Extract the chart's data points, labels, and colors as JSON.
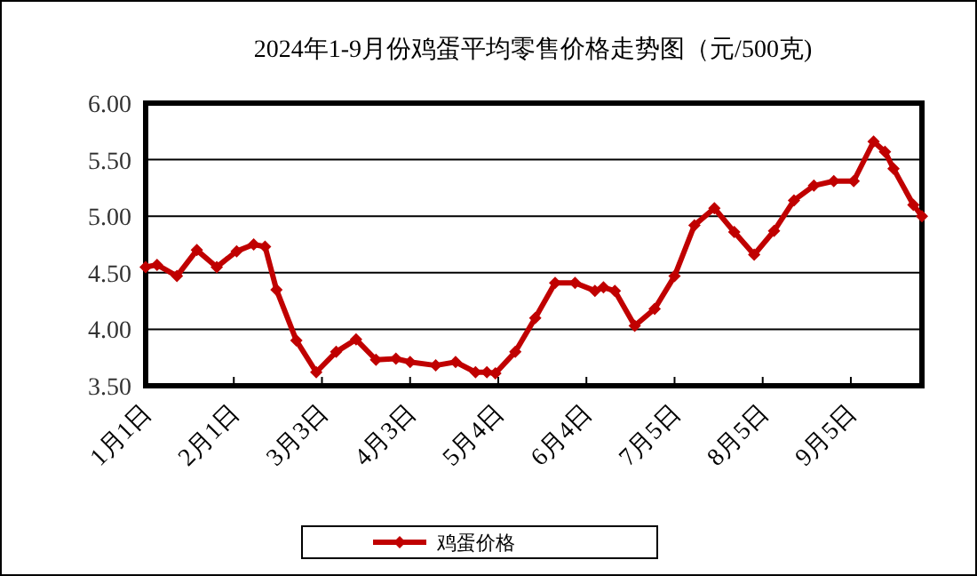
{
  "chart_data": {
    "type": "line",
    "title": "2024年1-9月份鸡蛋平均零售价格走势图（元/500克)",
    "x": [
      "--01-01",
      "--01-05",
      "--01-12",
      "--01-19",
      "--01-26",
      "--02-02",
      "--02-08",
      "--02-12",
      "--02-16",
      "--02-23",
      "--03-01",
      "--03-08",
      "--03-15",
      "--03-22",
      "--03-29",
      "--04-03",
      "--04-12",
      "--04-19",
      "--04-26",
      "--04-30",
      "--05-03",
      "--05-10",
      "--05-17",
      "--05-24",
      "--05-31",
      "--06-07",
      "--06-10",
      "--06-14",
      "--06-21",
      "--06-28",
      "--07-05",
      "--07-12",
      "--07-19",
      "--07-26",
      "--08-02",
      "--08-09",
      "--08-16",
      "--08-23",
      "--08-30",
      "--09-06",
      "--09-13",
      "--09-17",
      "--09-20",
      "--09-27",
      "--09-30"
    ],
    "series": [
      {
        "name": "鸡蛋价格",
        "color": "#c00000",
        "values": [
          4.55,
          4.57,
          4.47,
          4.7,
          4.55,
          4.69,
          4.75,
          4.73,
          4.35,
          3.9,
          3.62,
          3.8,
          3.91,
          3.73,
          3.74,
          3.71,
          3.68,
          3.71,
          3.62,
          3.62,
          3.61,
          3.8,
          4.1,
          4.41,
          4.41,
          4.34,
          4.37,
          4.34,
          4.03,
          4.18,
          4.47,
          4.92,
          5.07,
          4.86,
          4.66,
          4.87,
          5.14,
          5.27,
          5.31,
          5.31,
          5.66,
          5.57,
          5.42,
          5.1,
          5.0
        ]
      }
    ],
    "xlim": [
      "--01-01",
      "--09-30"
    ],
    "xticks": [
      {
        "value": "--01-01",
        "label": "1月1日"
      },
      {
        "value": "--02-01",
        "label": "2月1日"
      },
      {
        "value": "--03-03",
        "label": "3月3日"
      },
      {
        "value": "--04-03",
        "label": "4月3日"
      },
      {
        "value": "--05-04",
        "label": "5月4日"
      },
      {
        "value": "--06-04",
        "label": "6月4日"
      },
      {
        "value": "--07-05",
        "label": "7月5日"
      },
      {
        "value": "--08-05",
        "label": "8月5日"
      },
      {
        "value": "--09-05",
        "label": "9月5日"
      }
    ],
    "ylim": [
      3.5,
      6.0
    ],
    "yticks": [
      {
        "value": 3.5,
        "label": "3.50"
      },
      {
        "value": 4.0,
        "label": "4.00"
      },
      {
        "value": 4.5,
        "label": "4.50"
      },
      {
        "value": 5.0,
        "label": "5.00"
      },
      {
        "value": 5.5,
        "label": "5.50"
      },
      {
        "value": 6.0,
        "label": "6.00"
      }
    ],
    "grid": "y",
    "legend": "bottom",
    "marker": "diamond"
  }
}
